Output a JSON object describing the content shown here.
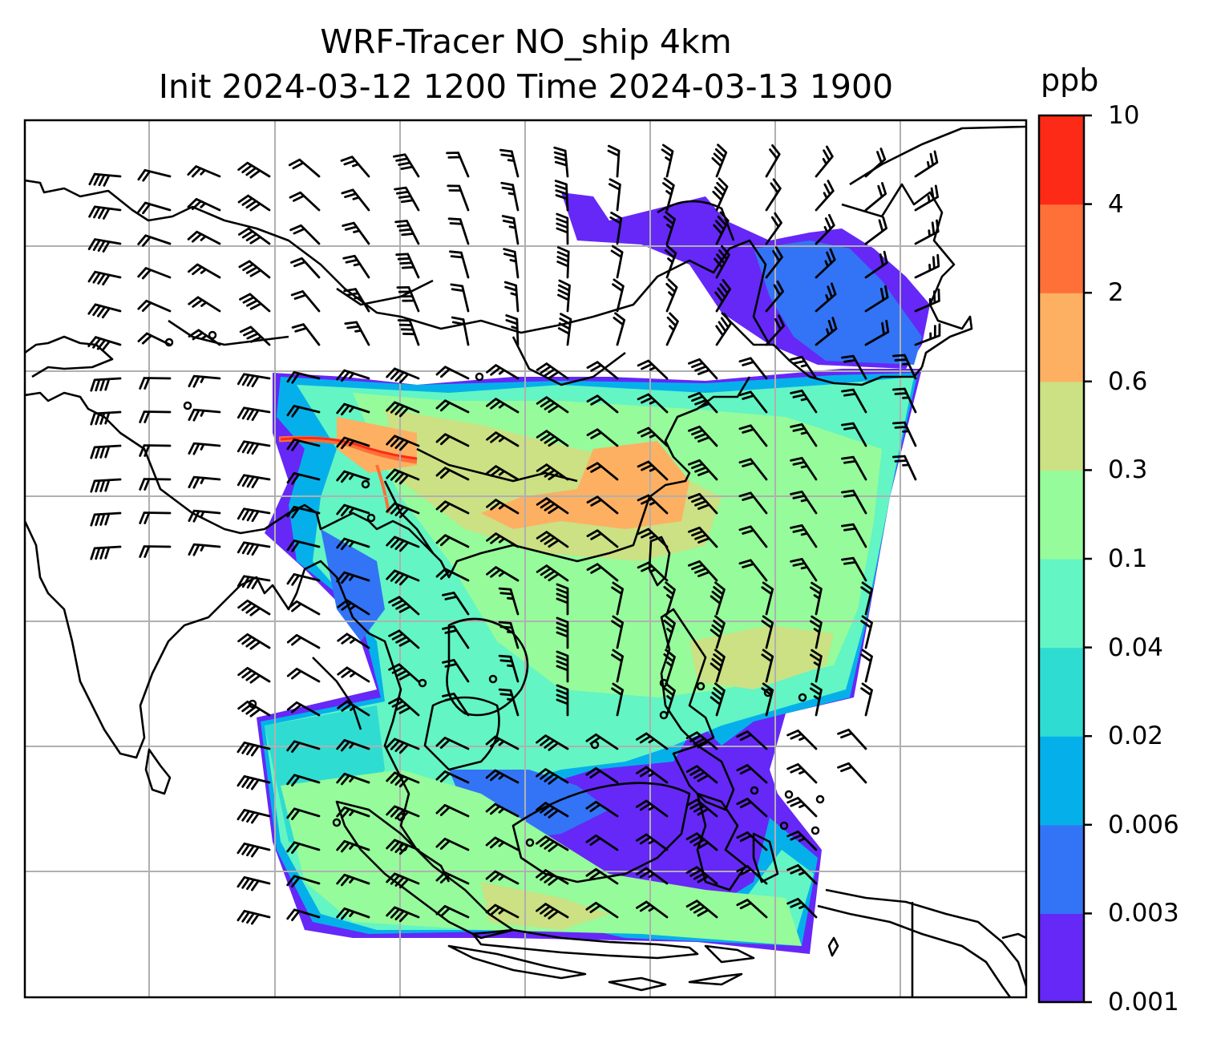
{
  "title": {
    "line1": "WRF-Tracer NO_ship 4km",
    "line2": "Init 2024-03-12 1200 Time 2024-03-13 1900"
  },
  "colorbar": {
    "unit": "ppb",
    "ticks": [
      "0.001",
      "0.003",
      "0.006",
      "0.02",
      "0.04",
      "0.1",
      "0.3",
      "0.6",
      "2",
      "4",
      "10"
    ],
    "colors": [
      "#6528f7",
      "#3274f5",
      "#05b0ea",
      "#2fdcd2",
      "#63f5c3",
      "#96fb9a",
      "#cce084",
      "#fdb062",
      "#fe7038",
      "#fc2a17"
    ]
  },
  "map": {
    "variable": "NO_ship",
    "resolution": "4km",
    "gridlines": true,
    "wind_barbs": true,
    "coastlines": true,
    "background": "#ffffff",
    "grid_color": "#b0b0b0"
  }
}
